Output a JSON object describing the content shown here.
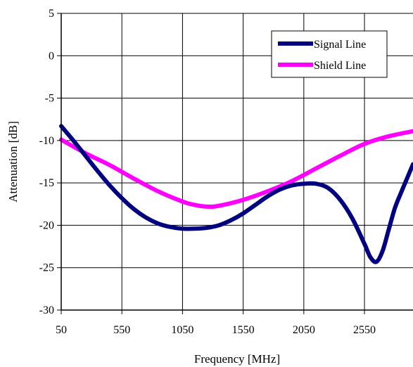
{
  "chart_data": {
    "type": "line",
    "title": "",
    "xlabel": "Frequency [MHz]",
    "ylabel": "Attenuation [dB]",
    "xlim": [
      50,
      2950
    ],
    "ylim": [
      -30,
      5
    ],
    "x_ticks": [
      50,
      550,
      1050,
      1550,
      2050,
      2550
    ],
    "x_tick_labels": [
      "50",
      "550",
      "1050",
      "1550",
      "2050",
      "2550"
    ],
    "y_ticks": [
      5,
      0,
      -5,
      -10,
      -15,
      -20,
      -25,
      -30
    ],
    "y_tick_labels": [
      "5",
      "0",
      "-5",
      "-10",
      "-15",
      "-20",
      "-25",
      "-30"
    ],
    "grid": true,
    "legend_position": "top-right",
    "series": [
      {
        "name": "Signal Line",
        "color": "#000080",
        "x": [
          50,
          150,
          250,
          350,
          450,
          550,
          650,
          750,
          850,
          950,
          1050,
          1150,
          1250,
          1350,
          1450,
          1550,
          1650,
          1750,
          1850,
          1950,
          2050,
          2150,
          2250,
          2350,
          2450,
          2550,
          2600,
          2650,
          2700,
          2750,
          2800,
          2850,
          2900,
          2950
        ],
        "values": [
          -8.3,
          -10.0,
          -11.8,
          -13.6,
          -15.3,
          -16.8,
          -18.1,
          -19.1,
          -19.8,
          -20.2,
          -20.4,
          -20.4,
          -20.3,
          -20.0,
          -19.4,
          -18.6,
          -17.6,
          -16.6,
          -15.8,
          -15.3,
          -15.1,
          -15.1,
          -15.6,
          -17.0,
          -19.2,
          -22.2,
          -23.8,
          -24.3,
          -23.0,
          -20.5,
          -18.0,
          -16.2,
          -14.5,
          -12.8
        ]
      },
      {
        "name": "Shield Line",
        "color": "#ff00ff",
        "x": [
          50,
          250,
          450,
          650,
          850,
          1050,
          1150,
          1250,
          1350,
          1550,
          1750,
          1950,
          2150,
          2350,
          2550,
          2750,
          2950
        ],
        "values": [
          -9.9,
          -11.5,
          -12.9,
          -14.5,
          -16.0,
          -17.2,
          -17.6,
          -17.8,
          -17.7,
          -17.0,
          -16.0,
          -14.8,
          -13.3,
          -11.8,
          -10.4,
          -9.5,
          -8.9
        ]
      }
    ]
  }
}
